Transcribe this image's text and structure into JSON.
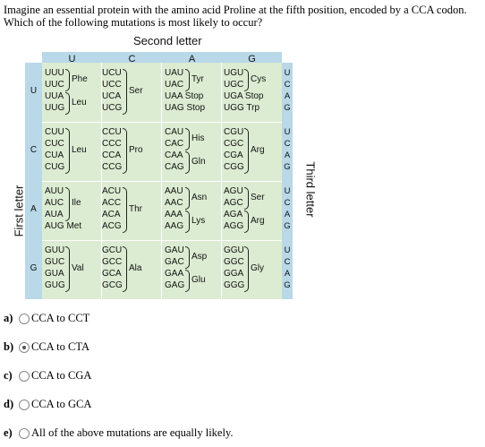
{
  "question": "Imagine an essential protein with the amino acid Proline at the fifth position, encoded by a CCA codon. Which of the following mutations is most likely to occur?",
  "table": {
    "second_letter_label": "Second letter",
    "first_letter_label": "First letter",
    "third_letter_label": "Third letter",
    "columns": [
      "U",
      "C",
      "A",
      "G"
    ],
    "rows": [
      "U",
      "C",
      "A",
      "G"
    ],
    "third_letters": [
      "U",
      "C",
      "A",
      "G"
    ],
    "cells": [
      [
        {
          "codons": [
            "UUU",
            "UUC",
            "UUA",
            "UUG"
          ],
          "aa": [
            [
              "Phe",
              0,
              1
            ],
            [
              "Leu",
              2,
              3
            ]
          ]
        },
        {
          "codons": [
            "UCU",
            "UCC",
            "UCA",
            "UCG"
          ],
          "aa": [
            [
              "Ser",
              0,
              3
            ]
          ]
        },
        {
          "codons": [
            "UAU",
            "UAC",
            "UAA  Stop",
            "UAG  Stop"
          ],
          "aa": [
            [
              "Tyr",
              0,
              1
            ]
          ]
        },
        {
          "codons": [
            "UGU",
            "UGC",
            "UGA  Stop",
            "UGG  Trp"
          ],
          "aa": [
            [
              "Cys",
              0,
              1
            ]
          ]
        }
      ],
      [
        {
          "codons": [
            "CUU",
            "CUC",
            "CUA",
            "CUG"
          ],
          "aa": [
            [
              "Leu",
              0,
              3
            ]
          ]
        },
        {
          "codons": [
            "CCU",
            "CCC",
            "CCA",
            "CCG"
          ],
          "aa": [
            [
              "Pro",
              0,
              3
            ]
          ]
        },
        {
          "codons": [
            "CAU",
            "CAC",
            "CAA",
            "CAG"
          ],
          "aa": [
            [
              "His",
              0,
              1
            ],
            [
              "Gln",
              2,
              3
            ]
          ]
        },
        {
          "codons": [
            "CGU",
            "CGC",
            "CGA",
            "CGG"
          ],
          "aa": [
            [
              "Arg",
              0,
              3
            ]
          ]
        }
      ],
      [
        {
          "codons": [
            "AUU",
            "AUC",
            "AUA",
            "AUG  Met"
          ],
          "aa": [
            [
              "Ile",
              0,
              2
            ]
          ]
        },
        {
          "codons": [
            "ACU",
            "ACC",
            "ACA",
            "ACG"
          ],
          "aa": [
            [
              "Thr",
              0,
              3
            ]
          ]
        },
        {
          "codons": [
            "AAU",
            "AAC",
            "AAA",
            "AAG"
          ],
          "aa": [
            [
              "Asn",
              0,
              1
            ],
            [
              "Lys",
              2,
              3
            ]
          ]
        },
        {
          "codons": [
            "AGU",
            "AGC",
            "AGA",
            "AGG"
          ],
          "aa": [
            [
              "Ser",
              0,
              1
            ],
            [
              "Arg",
              2,
              3
            ]
          ]
        }
      ],
      [
        {
          "codons": [
            "GUU",
            "GUC",
            "GUA",
            "GUG"
          ],
          "aa": [
            [
              "Val",
              0,
              3
            ]
          ]
        },
        {
          "codons": [
            "GCU",
            "GCC",
            "GCA",
            "GCG"
          ],
          "aa": [
            [
              "Ala",
              0,
              3
            ]
          ]
        },
        {
          "codons": [
            "GAU",
            "GAC",
            "GAA",
            "GAG"
          ],
          "aa": [
            [
              "Asp",
              0,
              1
            ],
            [
              "Glu",
              2,
              3
            ]
          ]
        },
        {
          "codons": [
            "GGU",
            "GGC",
            "GGA",
            "GGG"
          ],
          "aa": [
            [
              "Gly",
              0,
              3
            ]
          ]
        }
      ]
    ]
  },
  "options": [
    {
      "letter": "a)",
      "text": "CCA to CCT",
      "selected": false
    },
    {
      "letter": "b)",
      "text": "CCA to CTA",
      "selected": true
    },
    {
      "letter": "c)",
      "text": "CCA to CGA",
      "selected": false
    },
    {
      "letter": "d)",
      "text": "CCA to GCA",
      "selected": false
    },
    {
      "letter": "e)",
      "text": "All of the above mutations are equally likely.",
      "selected": false
    }
  ]
}
